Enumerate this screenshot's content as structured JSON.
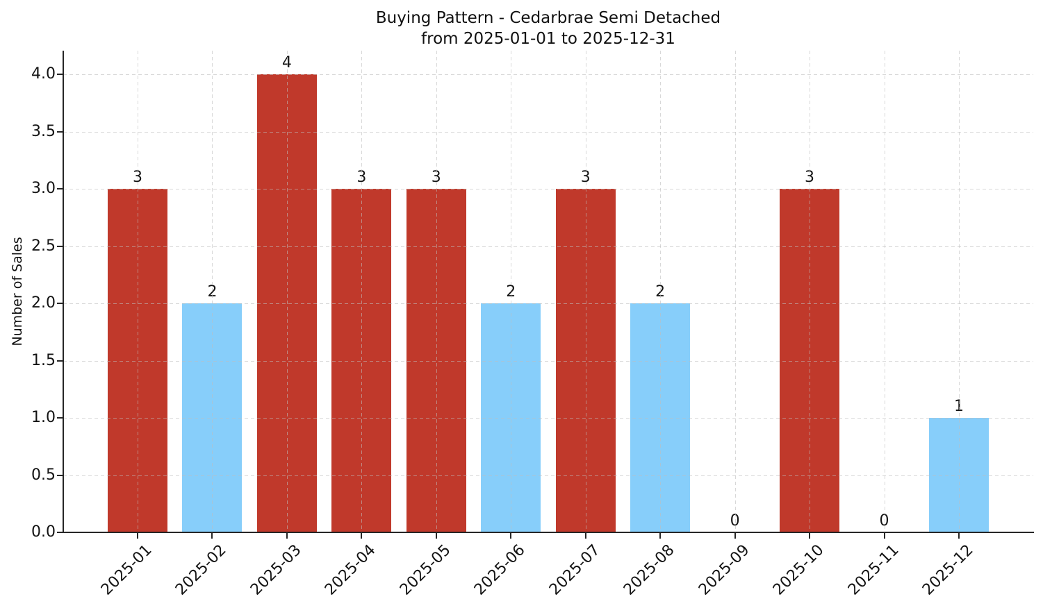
{
  "chart_data": {
    "type": "bar",
    "title": "Buying Pattern - Cedarbrae Semi Detached",
    "subtitle": "from 2025-01-01 to 2025-12-31",
    "ylabel": "Number of Sales",
    "xlabel": "",
    "categories": [
      "2025-01",
      "2025-02",
      "2025-03",
      "2025-04",
      "2025-05",
      "2025-06",
      "2025-07",
      "2025-08",
      "2025-09",
      "2025-10",
      "2025-11",
      "2025-12"
    ],
    "values": [
      3,
      2,
      4,
      3,
      3,
      2,
      3,
      2,
      0,
      3,
      0,
      1
    ],
    "value_labels": [
      "3",
      "2",
      "4",
      "3",
      "3",
      "2",
      "3",
      "2",
      "0",
      "3",
      "0",
      "1"
    ],
    "bar_colors": [
      "#c0392b",
      "#87CEFA",
      "#c0392b",
      "#c0392b",
      "#c0392b",
      "#87CEFA",
      "#c0392b",
      "#87CEFA",
      "#87CEFA",
      "#c0392b",
      "#87CEFA",
      "#87CEFA"
    ],
    "yticks": [
      0.0,
      0.5,
      1.0,
      1.5,
      2.0,
      2.5,
      3.0,
      3.5,
      4.0
    ],
    "ytick_labels": [
      "0.0",
      "0.5",
      "1.0",
      "1.5",
      "2.0",
      "2.5",
      "3.0",
      "3.5",
      "4.0"
    ],
    "ylim": [
      0,
      4.2
    ],
    "xtick_rotation_deg": 45,
    "grid": {
      "visible": true,
      "style": "dashed",
      "axes": "both"
    },
    "legend": "none",
    "colors": {
      "bar_red": "#c0392b",
      "bar_blue": "#87CEFA",
      "grid": "#d8d8d8",
      "axis": "#262626",
      "background": "#ffffff"
    }
  }
}
